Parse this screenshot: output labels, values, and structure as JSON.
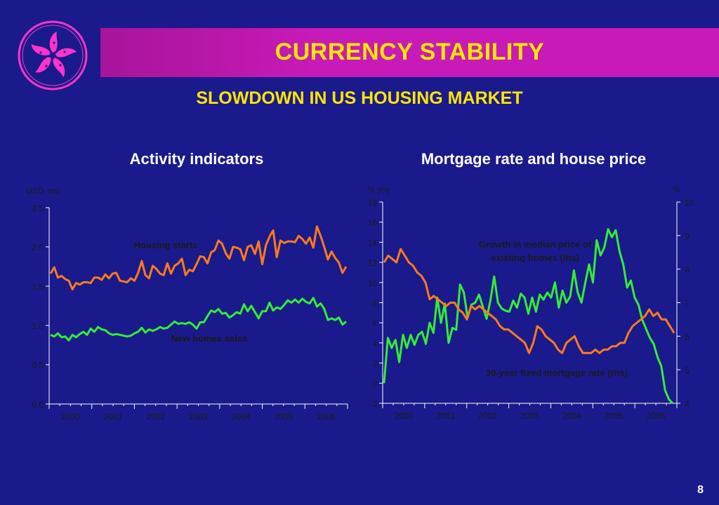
{
  "header": {
    "title": "CURRENCY STABILITY",
    "subtitle": "SLOWDOWN IN US HOUSING MARKET"
  },
  "page_number": "8",
  "colors": {
    "background": "#1a1a8c",
    "title_bar": "#c81ab8",
    "title_text": "#ffe600",
    "orange_series": "#ff7a1a",
    "green_series": "#33ee33",
    "logo": "#ff33cc"
  },
  "logo": {
    "icon": "bauhinia-flower-icon"
  },
  "chart_data": [
    {
      "type": "line",
      "title": "Activity indicators",
      "ylabel": "USD, mn",
      "ylim": [
        0,
        2.5
      ],
      "yticks": [
        "0.0",
        "0.5",
        "1.0",
        "1.5",
        "2.0",
        "2.5"
      ],
      "xlim": [
        2000,
        2007
      ],
      "xticks": [
        "2000",
        "2001",
        "2002",
        "2003",
        "2004",
        "2005",
        "2006"
      ],
      "annotations": [
        "Housing starts",
        "New homes sales"
      ],
      "series": [
        {
          "name": "Housing starts",
          "color": "#ff7a1a",
          "values": [
            1.66,
            1.74,
            1.61,
            1.63,
            1.59,
            1.57,
            1.46,
            1.54,
            1.52,
            1.55,
            1.55,
            1.54,
            1.61,
            1.61,
            1.58,
            1.65,
            1.6,
            1.66,
            1.67,
            1.57,
            1.56,
            1.55,
            1.6,
            1.57,
            1.67,
            1.82,
            1.64,
            1.6,
            1.76,
            1.72,
            1.66,
            1.64,
            1.79,
            1.66,
            1.76,
            1.79,
            1.85,
            1.64,
            1.71,
            1.69,
            1.78,
            1.88,
            1.87,
            1.79,
            1.93,
            1.96,
            2.08,
            2.04,
            1.92,
            1.85,
            2.0,
            1.99,
            1.97,
            1.83,
            2.0,
            2.02,
            1.91,
            2.07,
            1.78,
            2.02,
            2.13,
            2.21,
            1.87,
            2.08,
            2.05,
            2.07,
            2.07,
            2.06,
            2.14,
            2.1,
            2.04,
            2.12,
            1.99,
            2.26,
            2.14,
            2.0,
            1.84,
            1.94,
            1.86,
            1.8,
            1.67,
            1.75
          ]
        },
        {
          "name": "New homes sales",
          "color": "#33ee33",
          "values": [
            0.88,
            0.86,
            0.9,
            0.85,
            0.86,
            0.81,
            0.88,
            0.85,
            0.89,
            0.92,
            0.88,
            0.96,
            0.92,
            0.98,
            0.95,
            0.94,
            0.9,
            0.88,
            0.89,
            0.88,
            0.87,
            0.86,
            0.87,
            0.9,
            0.92,
            0.97,
            0.91,
            0.95,
            0.93,
            0.95,
            0.98,
            0.96,
            0.97,
            1.01,
            1.05,
            1.02,
            1.03,
            1.02,
            1.04,
            1.01,
            0.96,
            1.04,
            1.04,
            1.12,
            1.19,
            1.17,
            1.21,
            1.15,
            1.16,
            1.1,
            1.13,
            1.17,
            1.15,
            1.27,
            1.18,
            1.25,
            1.17,
            1.09,
            1.18,
            1.18,
            1.29,
            1.19,
            1.23,
            1.21,
            1.26,
            1.32,
            1.29,
            1.33,
            1.29,
            1.34,
            1.3,
            1.28,
            1.35,
            1.24,
            1.28,
            1.21,
            1.07,
            1.09,
            1.07,
            1.1,
            1.01,
            1.05
          ]
        }
      ]
    },
    {
      "type": "line",
      "title": "Mortgage rate and house price",
      "ylabel_left": "% yoy",
      "ylabel_right": "%",
      "ylim_left": [
        -2,
        18
      ],
      "ylim_right": [
        4,
        10
      ],
      "yticks_left": [
        "-2",
        "0",
        "2",
        "4",
        "6",
        "8",
        "10",
        "12",
        "14",
        "16",
        "18"
      ],
      "yticks_right": [
        "4",
        "5",
        "6",
        "7",
        "8",
        "9",
        "10"
      ],
      "xlim": [
        2000,
        2007
      ],
      "xticks": [
        "2000",
        "2001",
        "2002",
        "2003",
        "2004",
        "2005",
        "2006"
      ],
      "annotations": [
        "Growth in median price of existing homes (lhs)",
        "30-year fixed mortgage rate (rhs)"
      ],
      "series": [
        {
          "name": "Growth in median price of existing homes (lhs)",
          "axis": "left",
          "color": "#33ee33",
          "values": [
            0.0,
            4.5,
            3.5,
            4.3,
            2.1,
            4.8,
            3.5,
            4.8,
            3.8,
            4.8,
            5.1,
            3.9,
            6.0,
            5.0,
            8.5,
            6.0,
            7.9,
            4.0,
            5.5,
            5.3,
            9.8,
            9.0,
            6.5,
            7.8,
            8.0,
            8.8,
            7.6,
            6.4,
            8.2,
            10.6,
            8.0,
            7.4,
            7.2,
            7.1,
            8.2,
            7.5,
            8.9,
            8.5,
            6.9,
            8.5,
            7.1,
            8.8,
            8.3,
            9.0,
            8.5,
            10.0,
            7.5,
            9.2,
            8.0,
            8.6,
            11.2,
            9.0,
            8.0,
            10.0,
            11.8,
            10.0,
            14.2,
            12.7,
            13.5,
            15.3,
            14.5,
            15.2,
            13.1,
            11.8,
            9.5,
            10.2,
            8.5,
            7.8,
            6.3,
            5.4,
            4.5,
            3.9,
            2.6,
            1.7,
            -0.7,
            -1.6,
            -2.0
          ]
        },
        {
          "name": "30-year fixed mortgage rate (rhs)",
          "axis": "right",
          "color": "#ff7a1a",
          "values": [
            8.2,
            8.4,
            8.3,
            8.2,
            8.6,
            8.4,
            8.2,
            8.1,
            7.9,
            7.8,
            7.6,
            7.1,
            7.2,
            7.1,
            7.0,
            6.9,
            7.0,
            7.0,
            6.8,
            6.7,
            6.5,
            6.9,
            6.8,
            6.9,
            6.8,
            6.7,
            6.6,
            6.5,
            6.3,
            6.2,
            6.2,
            6.1,
            6.0,
            5.9,
            5.8,
            5.5,
            5.8,
            6.3,
            6.2,
            6.0,
            5.9,
            5.8,
            5.6,
            5.5,
            5.8,
            5.9,
            6.0,
            5.7,
            5.5,
            5.5,
            5.5,
            5.6,
            5.5,
            5.6,
            5.6,
            5.7,
            5.7,
            5.8,
            5.8,
            6.1,
            6.3,
            6.4,
            6.5,
            6.6,
            6.8,
            6.6,
            6.7,
            6.5,
            6.5,
            6.3,
            6.1
          ]
        }
      ]
    }
  ]
}
